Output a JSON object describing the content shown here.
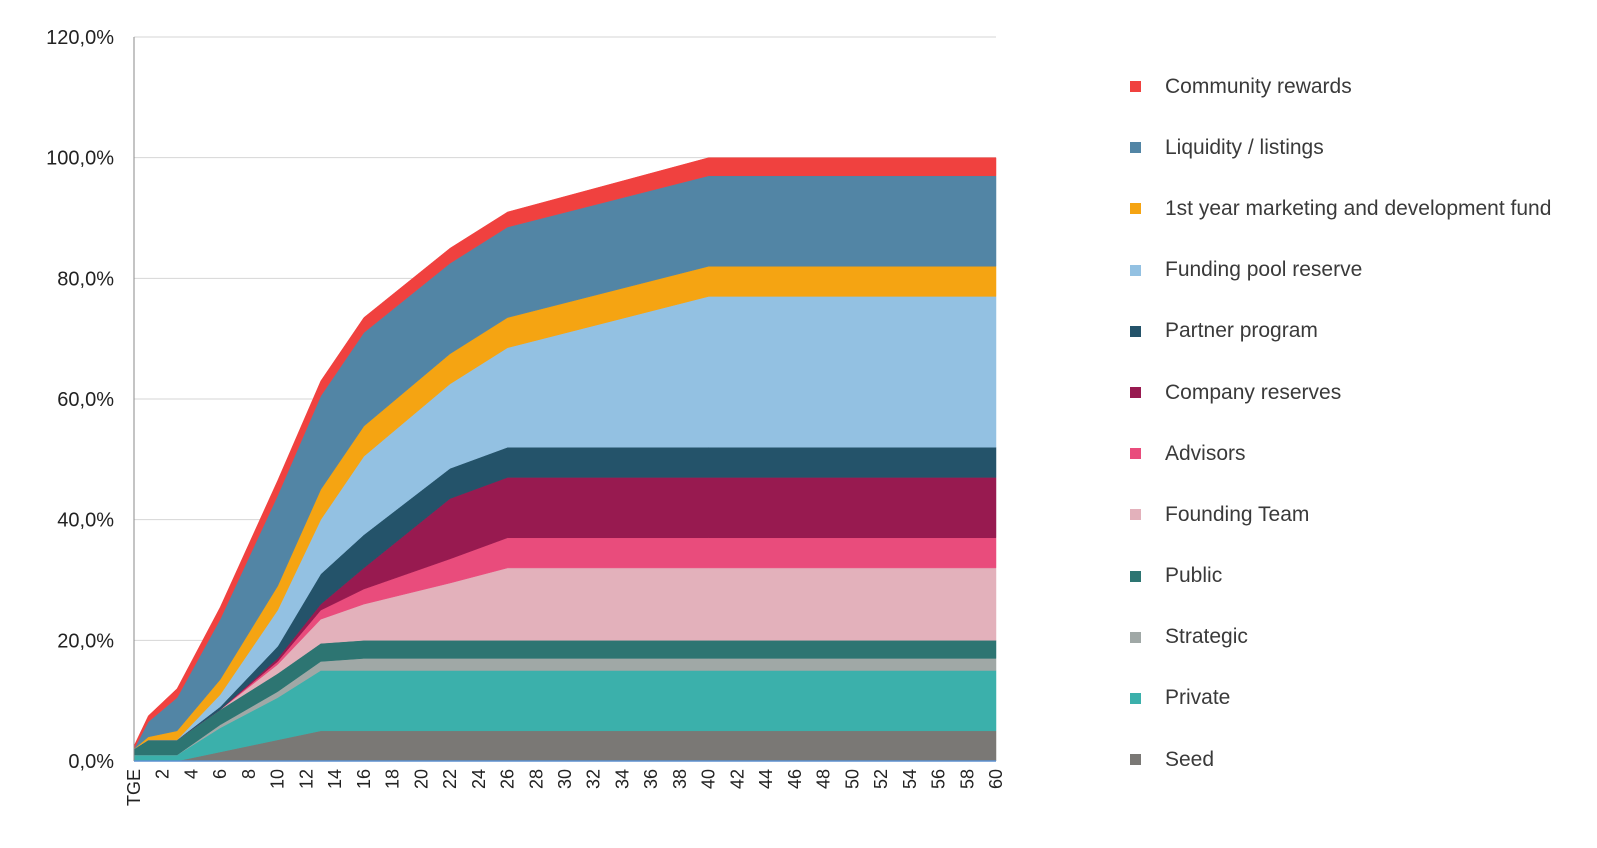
{
  "chart_data": {
    "type": "area",
    "stacked": true,
    "title": "",
    "xlabel": "",
    "ylabel": "",
    "ylim": [
      0,
      120
    ],
    "y_ticks": [
      "0,0%",
      "20,0%",
      "40,0%",
      "60,0%",
      "80,0%",
      "100,0%",
      "120,0%"
    ],
    "y_tick_values": [
      0,
      20,
      40,
      60,
      80,
      100,
      120
    ],
    "x_ticks": [
      "TGE",
      "2",
      "4",
      "6",
      "8",
      "10",
      "12",
      "14",
      "16",
      "18",
      "20",
      "22",
      "24",
      "26",
      "28",
      "30",
      "32",
      "34",
      "36",
      "38",
      "40",
      "42",
      "44",
      "46",
      "48",
      "50",
      "52",
      "54",
      "56",
      "58",
      "60"
    ],
    "x": [
      0,
      1,
      3,
      6,
      10,
      13,
      16,
      22,
      26,
      40,
      60
    ],
    "grid": true,
    "legend_position": "right",
    "series": [
      {
        "name": "Seed",
        "color": "#7a7875",
        "values": [
          0.0,
          0.0,
          0.0,
          1.5,
          3.5,
          5.0,
          5.0,
          5.0,
          5.0,
          5.0,
          5.0
        ]
      },
      {
        "name": "Private",
        "color": "#3bb0ab",
        "values": [
          1.0,
          1.0,
          1.0,
          4.0,
          7.0,
          10.0,
          10.0,
          10.0,
          10.0,
          10.0,
          10.0
        ]
      },
      {
        "name": "Strategic",
        "color": "#a0a8a6",
        "values": [
          0.0,
          0.0,
          0.0,
          0.5,
          1.0,
          1.5,
          2.0,
          2.0,
          2.0,
          2.0,
          2.0
        ]
      },
      {
        "name": "Public",
        "color": "#2d7572",
        "values": [
          1.0,
          2.5,
          2.5,
          2.5,
          3.0,
          3.0,
          3.0,
          3.0,
          3.0,
          3.0,
          3.0
        ]
      },
      {
        "name": "Founding Team",
        "color": "#e3b1bb",
        "values": [
          0.0,
          0.0,
          0.0,
          0.0,
          1.5,
          4.0,
          6.0,
          9.5,
          12.0,
          12.0,
          12.0
        ]
      },
      {
        "name": "Advisors",
        "color": "#e94c7c",
        "values": [
          0.0,
          0.0,
          0.0,
          0.0,
          0.5,
          1.5,
          2.5,
          4.0,
          5.0,
          5.0,
          5.0
        ]
      },
      {
        "name": "Company reserves",
        "color": "#981a50",
        "values": [
          0.0,
          0.0,
          0.0,
          0.0,
          0.5,
          1.0,
          3.5,
          10.0,
          10.0,
          10.0,
          10.0
        ]
      },
      {
        "name": "Partner program",
        "color": "#24536a",
        "values": [
          0.0,
          0.0,
          0.0,
          0.5,
          2.0,
          5.0,
          5.5,
          5.0,
          5.0,
          5.0,
          5.0
        ]
      },
      {
        "name": "Funding pool reserve",
        "color": "#93c1e2",
        "values": [
          0.0,
          0.0,
          0.0,
          2.0,
          6.0,
          9.0,
          13.0,
          14.0,
          16.5,
          25.0,
          25.0
        ]
      },
      {
        "name": "1st year marketing and development fund",
        "color": "#f5a412",
        "values": [
          0.0,
          0.5,
          1.5,
          2.5,
          4.0,
          5.0,
          5.0,
          5.0,
          5.0,
          5.0,
          5.0
        ]
      },
      {
        "name": "Liquidity / listings",
        "color": "#5285a5",
        "values": [
          0.0,
          2.5,
          5.5,
          10.0,
          15.0,
          15.5,
          15.5,
          15.0,
          15.0,
          15.0,
          15.0
        ]
      },
      {
        "name": "Community rewards",
        "color": "#f0413f",
        "values": [
          0.5,
          1.0,
          1.5,
          2.0,
          2.5,
          2.5,
          2.5,
          2.5,
          2.5,
          3.0,
          3.0
        ]
      }
    ]
  }
}
